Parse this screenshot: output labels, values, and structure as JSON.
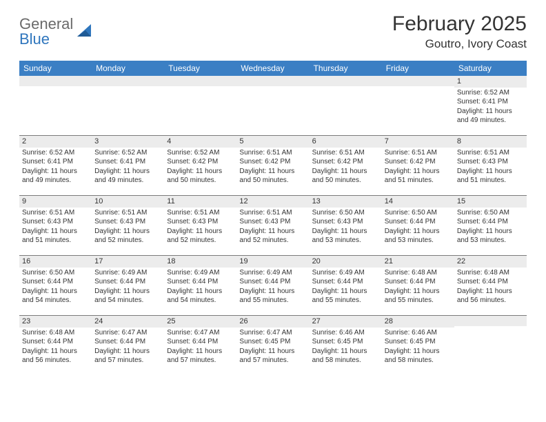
{
  "brand": {
    "part1": "General",
    "part2": "Blue"
  },
  "title": "February 2025",
  "location": "Goutro, Ivory Coast",
  "colors": {
    "header_bar": "#3b7fc4",
    "daynum_bg": "#ececec",
    "rule": "#7a7a7a",
    "text": "#333333",
    "brand_blue": "#2f76bd"
  },
  "weekdays": [
    "Sunday",
    "Monday",
    "Tuesday",
    "Wednesday",
    "Thursday",
    "Friday",
    "Saturday"
  ],
  "weeks": [
    [
      {
        "n": "",
        "sunrise": "",
        "sunset": "",
        "daylight": ""
      },
      {
        "n": "",
        "sunrise": "",
        "sunset": "",
        "daylight": ""
      },
      {
        "n": "",
        "sunrise": "",
        "sunset": "",
        "daylight": ""
      },
      {
        "n": "",
        "sunrise": "",
        "sunset": "",
        "daylight": ""
      },
      {
        "n": "",
        "sunrise": "",
        "sunset": "",
        "daylight": ""
      },
      {
        "n": "",
        "sunrise": "",
        "sunset": "",
        "daylight": ""
      },
      {
        "n": "1",
        "sunrise": "Sunrise: 6:52 AM",
        "sunset": "Sunset: 6:41 PM",
        "daylight": "Daylight: 11 hours and 49 minutes."
      }
    ],
    [
      {
        "n": "2",
        "sunrise": "Sunrise: 6:52 AM",
        "sunset": "Sunset: 6:41 PM",
        "daylight": "Daylight: 11 hours and 49 minutes."
      },
      {
        "n": "3",
        "sunrise": "Sunrise: 6:52 AM",
        "sunset": "Sunset: 6:41 PM",
        "daylight": "Daylight: 11 hours and 49 minutes."
      },
      {
        "n": "4",
        "sunrise": "Sunrise: 6:52 AM",
        "sunset": "Sunset: 6:42 PM",
        "daylight": "Daylight: 11 hours and 50 minutes."
      },
      {
        "n": "5",
        "sunrise": "Sunrise: 6:51 AM",
        "sunset": "Sunset: 6:42 PM",
        "daylight": "Daylight: 11 hours and 50 minutes."
      },
      {
        "n": "6",
        "sunrise": "Sunrise: 6:51 AM",
        "sunset": "Sunset: 6:42 PM",
        "daylight": "Daylight: 11 hours and 50 minutes."
      },
      {
        "n": "7",
        "sunrise": "Sunrise: 6:51 AM",
        "sunset": "Sunset: 6:42 PM",
        "daylight": "Daylight: 11 hours and 51 minutes."
      },
      {
        "n": "8",
        "sunrise": "Sunrise: 6:51 AM",
        "sunset": "Sunset: 6:43 PM",
        "daylight": "Daylight: 11 hours and 51 minutes."
      }
    ],
    [
      {
        "n": "9",
        "sunrise": "Sunrise: 6:51 AM",
        "sunset": "Sunset: 6:43 PM",
        "daylight": "Daylight: 11 hours and 51 minutes."
      },
      {
        "n": "10",
        "sunrise": "Sunrise: 6:51 AM",
        "sunset": "Sunset: 6:43 PM",
        "daylight": "Daylight: 11 hours and 52 minutes."
      },
      {
        "n": "11",
        "sunrise": "Sunrise: 6:51 AM",
        "sunset": "Sunset: 6:43 PM",
        "daylight": "Daylight: 11 hours and 52 minutes."
      },
      {
        "n": "12",
        "sunrise": "Sunrise: 6:51 AM",
        "sunset": "Sunset: 6:43 PM",
        "daylight": "Daylight: 11 hours and 52 minutes."
      },
      {
        "n": "13",
        "sunrise": "Sunrise: 6:50 AM",
        "sunset": "Sunset: 6:43 PM",
        "daylight": "Daylight: 11 hours and 53 minutes."
      },
      {
        "n": "14",
        "sunrise": "Sunrise: 6:50 AM",
        "sunset": "Sunset: 6:44 PM",
        "daylight": "Daylight: 11 hours and 53 minutes."
      },
      {
        "n": "15",
        "sunrise": "Sunrise: 6:50 AM",
        "sunset": "Sunset: 6:44 PM",
        "daylight": "Daylight: 11 hours and 53 minutes."
      }
    ],
    [
      {
        "n": "16",
        "sunrise": "Sunrise: 6:50 AM",
        "sunset": "Sunset: 6:44 PM",
        "daylight": "Daylight: 11 hours and 54 minutes."
      },
      {
        "n": "17",
        "sunrise": "Sunrise: 6:49 AM",
        "sunset": "Sunset: 6:44 PM",
        "daylight": "Daylight: 11 hours and 54 minutes."
      },
      {
        "n": "18",
        "sunrise": "Sunrise: 6:49 AM",
        "sunset": "Sunset: 6:44 PM",
        "daylight": "Daylight: 11 hours and 54 minutes."
      },
      {
        "n": "19",
        "sunrise": "Sunrise: 6:49 AM",
        "sunset": "Sunset: 6:44 PM",
        "daylight": "Daylight: 11 hours and 55 minutes."
      },
      {
        "n": "20",
        "sunrise": "Sunrise: 6:49 AM",
        "sunset": "Sunset: 6:44 PM",
        "daylight": "Daylight: 11 hours and 55 minutes."
      },
      {
        "n": "21",
        "sunrise": "Sunrise: 6:48 AM",
        "sunset": "Sunset: 6:44 PM",
        "daylight": "Daylight: 11 hours and 55 minutes."
      },
      {
        "n": "22",
        "sunrise": "Sunrise: 6:48 AM",
        "sunset": "Sunset: 6:44 PM",
        "daylight": "Daylight: 11 hours and 56 minutes."
      }
    ],
    [
      {
        "n": "23",
        "sunrise": "Sunrise: 6:48 AM",
        "sunset": "Sunset: 6:44 PM",
        "daylight": "Daylight: 11 hours and 56 minutes."
      },
      {
        "n": "24",
        "sunrise": "Sunrise: 6:47 AM",
        "sunset": "Sunset: 6:44 PM",
        "daylight": "Daylight: 11 hours and 57 minutes."
      },
      {
        "n": "25",
        "sunrise": "Sunrise: 6:47 AM",
        "sunset": "Sunset: 6:44 PM",
        "daylight": "Daylight: 11 hours and 57 minutes."
      },
      {
        "n": "26",
        "sunrise": "Sunrise: 6:47 AM",
        "sunset": "Sunset: 6:45 PM",
        "daylight": "Daylight: 11 hours and 57 minutes."
      },
      {
        "n": "27",
        "sunrise": "Sunrise: 6:46 AM",
        "sunset": "Sunset: 6:45 PM",
        "daylight": "Daylight: 11 hours and 58 minutes."
      },
      {
        "n": "28",
        "sunrise": "Sunrise: 6:46 AM",
        "sunset": "Sunset: 6:45 PM",
        "daylight": "Daylight: 11 hours and 58 minutes."
      },
      {
        "n": "",
        "sunrise": "",
        "sunset": "",
        "daylight": ""
      }
    ]
  ]
}
